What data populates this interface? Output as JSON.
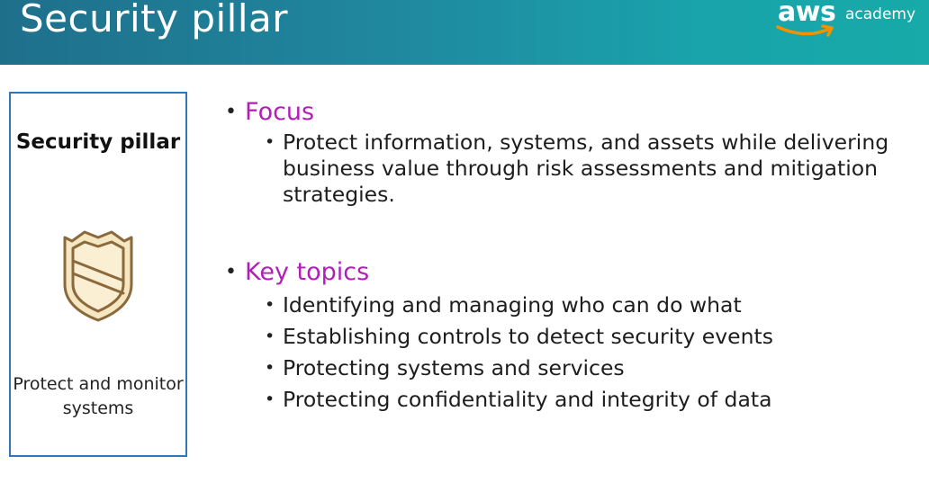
{
  "header": {
    "title": "Security pillar",
    "logo": {
      "brand": "aws",
      "suffix": "academy"
    }
  },
  "pillar_card": {
    "name": "Security pillar",
    "icon": "shield-icon",
    "description": "Protect and monitor systems"
  },
  "content": {
    "focus": {
      "heading": "Focus",
      "items": [
        "Protect information, systems, and assets while delivering business value through risk assessments and mitigation strategies."
      ]
    },
    "key_topics": {
      "heading": "Key topics",
      "items": [
        "Identifying and managing who can do what",
        "Establishing controls to detect security events",
        "Protecting systems and services",
        "Protecting confidentiality and integrity of data"
      ]
    }
  },
  "colors": {
    "header_start": "#1f6f8b",
    "header_end": "#17aaa8",
    "heading_accent": "#b21eb8",
    "card_border": "#2f78b5",
    "shield_fill": "#f6e7c3",
    "shield_stroke": "#8a6a3c",
    "logo_smile": "#f29100"
  }
}
